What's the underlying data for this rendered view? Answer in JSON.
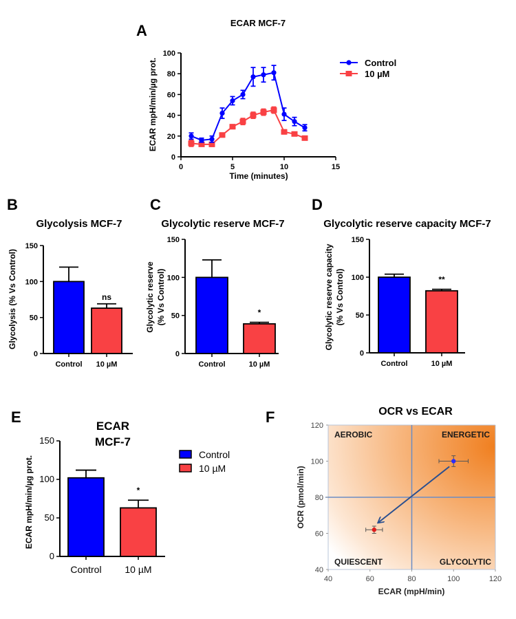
{
  "colors": {
    "control": "#0000ff",
    "treated": "#f94144",
    "f_orange": "#f07f1f",
    "f_grid": "#6b8cc4",
    "f_arrow": "#2a4f8f"
  },
  "panels": {
    "A": "A",
    "B": "B",
    "C": "C",
    "D": "D",
    "E": "E",
    "F": "F"
  },
  "chart_data": [
    {
      "id": "A",
      "type": "line",
      "title": "ECAR MCF-7",
      "xlabel": "Time (minutes)",
      "ylabel": "ECAR mpH/min/µg prot.",
      "xlim": [
        0,
        15
      ],
      "ylim": [
        0,
        100
      ],
      "xticks": [
        "0",
        "5",
        "10",
        "15"
      ],
      "yticks": [
        "0",
        "20",
        "40",
        "60",
        "80",
        "100"
      ],
      "legend": "top-right",
      "x": [
        1,
        2,
        3,
        4,
        5,
        6,
        7,
        8,
        9,
        10,
        11,
        12
      ],
      "series": [
        {
          "name": "Control",
          "marker": "circle",
          "values": [
            20,
            16,
            17,
            42,
            54,
            60,
            77,
            79,
            81,
            41,
            34,
            28
          ],
          "errors": [
            3,
            2,
            3,
            5,
            4,
            4,
            9,
            7,
            7,
            6,
            4,
            3
          ]
        },
        {
          "name": "10 µM",
          "marker": "square",
          "values": [
            13,
            12,
            12,
            21,
            29,
            34,
            40,
            43,
            45,
            24,
            22,
            18
          ],
          "errors": [
            3,
            1,
            2,
            2,
            2,
            3,
            3,
            3,
            3,
            2,
            1,
            1
          ]
        }
      ]
    },
    {
      "id": "B",
      "type": "bar",
      "title": "Glycolysis MCF-7",
      "ylabel": "Glycolysis (% Vs Control)",
      "ylim": [
        0,
        150
      ],
      "yticks": [
        "0",
        "50",
        "100",
        "150"
      ],
      "categories": [
        "Control",
        "10 µM"
      ],
      "values": [
        100,
        63
      ],
      "errors": [
        20,
        6
      ],
      "annotations": [
        "",
        "ns"
      ]
    },
    {
      "id": "C",
      "type": "bar",
      "title": "Glycolytic reserve MCF-7",
      "ylabel_lines": [
        "Glycolytic reserve",
        "(% Vs Control)"
      ],
      "ylim": [
        0,
        150
      ],
      "yticks": [
        "0",
        "50",
        "100",
        "150"
      ],
      "categories": [
        "Control",
        "10 µM"
      ],
      "values": [
        100,
        39
      ],
      "errors": [
        23,
        2
      ],
      "annotations": [
        "",
        "*"
      ]
    },
    {
      "id": "D",
      "type": "bar",
      "title": "Glycolytic reserve capacity MCF-7",
      "ylabel_lines": [
        "Glycolytic reserve capacity",
        "(% Vs Control)"
      ],
      "ylim": [
        0,
        150
      ],
      "yticks": [
        "0",
        "50",
        "100",
        "150"
      ],
      "categories": [
        "Control",
        "10 µM"
      ],
      "values": [
        100,
        82
      ],
      "errors": [
        4,
        2
      ],
      "annotations": [
        "",
        "**"
      ]
    },
    {
      "id": "E",
      "type": "bar",
      "title_lines": [
        "ECAR",
        "MCF-7"
      ],
      "ylabel": "ECAR mpH/min/µg prot.",
      "ylim": [
        0,
        150
      ],
      "yticks": [
        "0",
        "50",
        "100",
        "150"
      ],
      "categories": [
        "Control",
        "10 µM"
      ],
      "values": [
        102,
        63
      ],
      "errors": [
        10,
        10
      ],
      "annotations": [
        "",
        "*"
      ],
      "legend_entries": [
        "Control",
        "10 µM"
      ],
      "legend": "right"
    },
    {
      "id": "F",
      "type": "scatter",
      "title": "OCR vs ECAR",
      "xlabel": "ECAR (mpH/min)",
      "ylabel": "OCR (pmol/min)",
      "xlim": [
        40,
        120
      ],
      "ylim": [
        40,
        120
      ],
      "xticks": [
        "40",
        "60",
        "80",
        "100",
        "120"
      ],
      "yticks": [
        "40",
        "60",
        "80",
        "100",
        "120"
      ],
      "quadrants": {
        "top_left": "AEROBIC",
        "top_right": "ENERGETIC",
        "bottom_left": "QUIESCENT",
        "bottom_right": "GLYCOLYTIC"
      },
      "dividers": {
        "x": 80,
        "y": 80
      },
      "points": [
        {
          "name": "Control",
          "x": 100,
          "y": 100,
          "xerr": 7,
          "yerr": 3
        },
        {
          "name": "10 µM",
          "x": 62,
          "y": 62,
          "xerr": 4,
          "yerr": 2
        }
      ],
      "arrow": {
        "from": [
          98,
          97
        ],
        "to": [
          64,
          66
        ]
      }
    }
  ]
}
